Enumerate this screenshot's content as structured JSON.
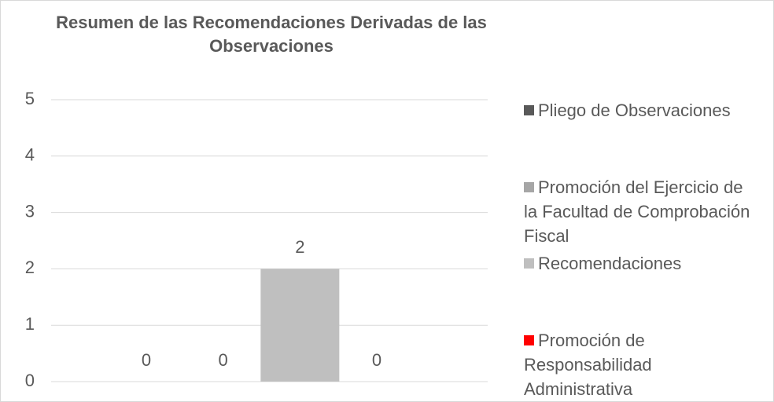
{
  "chart_data": {
    "type": "bar",
    "title": "Resumen de las Recomendaciones Derivadas de las Observaciones",
    "categories": [
      null
    ],
    "series": [
      {
        "name": "Pliego de Observaciones",
        "color": "#595959",
        "values": [
          0
        ]
      },
      {
        "name": "Promoción del Ejercicio de la Facultad de Comprobación Fiscal",
        "color": "#a6a6a6",
        "values": [
          0
        ]
      },
      {
        "name": "Recomendaciones",
        "color": "#bfbfbf",
        "values": [
          2
        ]
      },
      {
        "name": "Promoción de Responsabilidad Administrativa",
        "color": "#ff0000",
        "values": [
          0
        ]
      }
    ],
    "ylim": [
      0,
      5
    ],
    "yticks": [
      0,
      1,
      2,
      3,
      4,
      5
    ],
    "grid": true,
    "legend": "right"
  }
}
